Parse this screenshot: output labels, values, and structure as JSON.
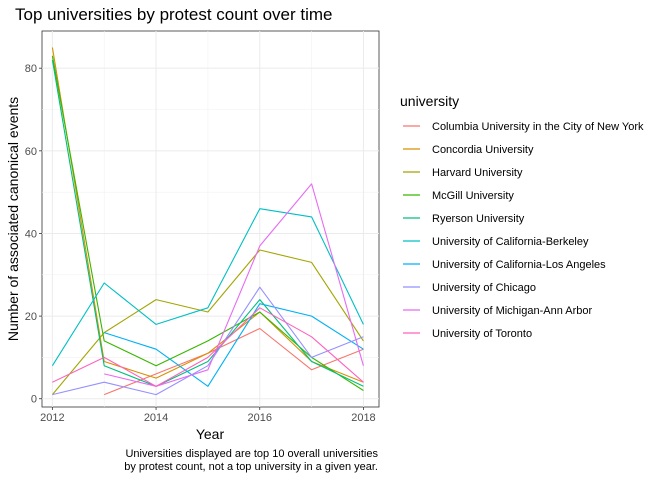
{
  "chart_data": {
    "type": "line",
    "title": "Top universities by protest count over time",
    "xlabel": "Year",
    "ylabel": "Number of associated canonical events",
    "caption": [
      "Universities displayed are top 10 overall universities",
      "by protest count, not a top university in a given year."
    ],
    "xlim": [
      2011.8,
      2018.3
    ],
    "ylim": [
      -2,
      89
    ],
    "x_ticks": [
      2012,
      2014,
      2016,
      2018
    ],
    "y_ticks": [
      0,
      20,
      40,
      60,
      80
    ],
    "grid": true,
    "legend_title": "university",
    "legend_position": "right",
    "series": [
      {
        "name": "Columbia University in the City of New York",
        "color": "#F8766D",
        "x": [
          2013,
          2014,
          2015,
          2016,
          2017,
          2018
        ],
        "y": [
          1,
          6,
          11,
          17,
          7,
          12
        ]
      },
      {
        "name": "Concordia University",
        "color": "#D89000",
        "x": [
          2012,
          2013,
          2014,
          2015,
          2016,
          2017,
          2018
        ],
        "y": [
          85,
          9,
          5,
          11,
          21,
          9,
          4
        ]
      },
      {
        "name": "Harvard University",
        "color": "#A3A500",
        "x": [
          2012,
          2013,
          2014,
          2015,
          2016,
          2017,
          2018
        ],
        "y": [
          1,
          16,
          24,
          21,
          36,
          33,
          14
        ]
      },
      {
        "name": "McGill University",
        "color": "#39B600",
        "x": [
          2012,
          2013,
          2014,
          2015,
          2016,
          2017,
          2018
        ],
        "y": [
          83,
          14,
          8,
          14,
          21,
          10,
          2
        ]
      },
      {
        "name": "Ryerson University",
        "color": "#00BF7D",
        "x": [
          2012,
          2013,
          2014,
          2015,
          2016,
          2017,
          2018
        ],
        "y": [
          82,
          8,
          3,
          9,
          24,
          9,
          3
        ]
      },
      {
        "name": "University of California-Berkeley",
        "color": "#00BFC4",
        "x": [
          2012,
          2013,
          2014,
          2015,
          2016,
          2017,
          2018
        ],
        "y": [
          8,
          28,
          18,
          22,
          46,
          44,
          18
        ]
      },
      {
        "name": "University of California-Los Angeles",
        "color": "#00B0F6",
        "x": [
          2013,
          2014,
          2015,
          2016,
          2017,
          2018
        ],
        "y": [
          16,
          12,
          3,
          23,
          20,
          12
        ]
      },
      {
        "name": "University of Chicago",
        "color": "#9590FF",
        "x": [
          2012,
          2013,
          2014,
          2015,
          2016,
          2017,
          2018
        ],
        "y": [
          1,
          4,
          1,
          8,
          27,
          10,
          15
        ]
      },
      {
        "name": "University of Michigan-Ann Arbor",
        "color": "#E76BF3",
        "x": [
          2013,
          2014,
          2015,
          2016,
          2017,
          2018
        ],
        "y": [
          6,
          3,
          7,
          37,
          52,
          8
        ]
      },
      {
        "name": "University of Toronto",
        "color": "#FF62BC",
        "x": [
          2012,
          2013,
          2014,
          2015,
          2016,
          2017,
          2018
        ],
        "y": [
          4,
          10,
          3,
          10,
          22,
          15,
          4
        ]
      }
    ]
  }
}
